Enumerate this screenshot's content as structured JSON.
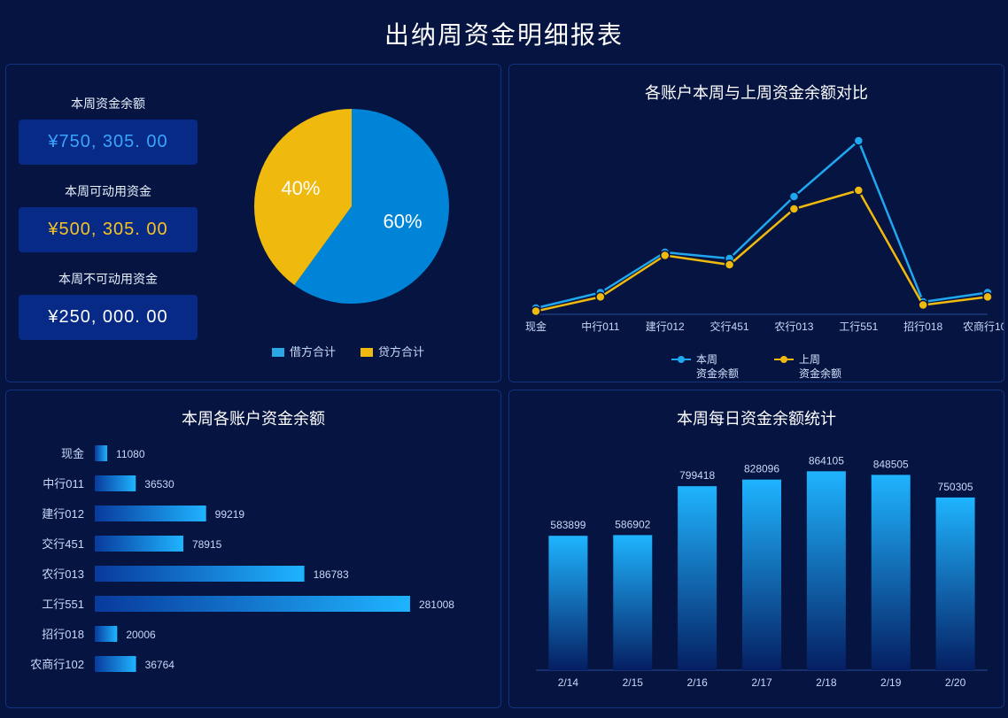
{
  "title": "出纳周资金明细报表",
  "colors": {
    "bg": "#051441",
    "panel_border": "#12327a",
    "text": "#d3e4ff",
    "text_light": "#ffffff",
    "stat_bg": "#062a86",
    "blue": "#0084d7",
    "blue_light": "#2aa8e6",
    "cyan_line": "#1fa8f0",
    "yellow": "#f0b90d",
    "bar_top": "#1fb4ff",
    "bar_bottom": "#083a9c"
  },
  "p1": {
    "stats": [
      {
        "label": "本周资金余额",
        "value": "¥750, 305. 00",
        "cls": "stat-blue"
      },
      {
        "label": "本周可动用资金",
        "value": "¥500, 305. 00",
        "cls": "stat-yellow"
      },
      {
        "label": "本周不可动用资金",
        "value": "¥250, 000. 00",
        "cls": "stat-white"
      }
    ],
    "pie": {
      "slices": [
        {
          "label": "60%",
          "value": 60,
          "color": "#0084d7"
        },
        {
          "label": "40%",
          "value": 40,
          "color": "#f0b90d"
        }
      ],
      "legend": [
        {
          "swatch": "#2aa8e6",
          "text": "借方合计"
        },
        {
          "swatch": "#f0b90d",
          "text": "贷方合计"
        }
      ]
    }
  },
  "p2": {
    "title": "各账户本周与上周资金余额对比",
    "categories": [
      "现金",
      "中行011",
      "建行012",
      "交行451",
      "农行013",
      "工行551",
      "招行018",
      "农商行102"
    ],
    "series": [
      {
        "name": "本周\n资金余额",
        "color": "#1fa8f0",
        "values": [
          10,
          35,
          100,
          90,
          190,
          280,
          20,
          35
        ]
      },
      {
        "name": "上周\n资金余额",
        "color": "#f0b90d",
        "values": [
          5,
          28,
          95,
          80,
          170,
          200,
          15,
          28
        ]
      }
    ],
    "ylim": [
      0,
      300
    ]
  },
  "p3": {
    "title": "本周各账户资金余额",
    "categories": [
      "现金",
      "中行011",
      "建行012",
      "交行451",
      "农行013",
      "工行551",
      "招行018",
      "农商行102"
    ],
    "values": [
      11080,
      36530,
      99219,
      78915,
      186783,
      281008,
      20006,
      36764
    ],
    "xmax": 300000,
    "bar_top": "#1fb4ff",
    "bar_bottom": "#083a9c"
  },
  "p4": {
    "title": "本周每日资金余额统计",
    "categories": [
      "2/14",
      "2/15",
      "2/16",
      "2/17",
      "2/18",
      "2/19",
      "2/20"
    ],
    "values": [
      583899,
      586902,
      799418,
      828096,
      864105,
      848505,
      750305
    ],
    "ymax": 900000,
    "bar_top": "#1fb4ff",
    "bar_bottom": "#051f62"
  }
}
